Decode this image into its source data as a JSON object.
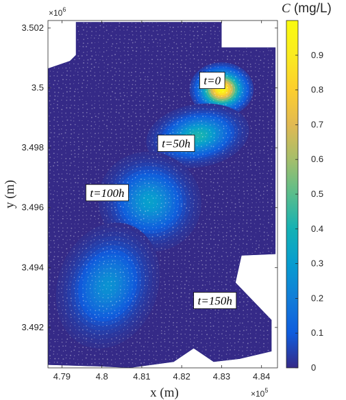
{
  "chart_data": {
    "type": "scatter",
    "title": "",
    "xlabel": "x (m)",
    "ylabel": "y (m)",
    "xlim": [
      478650,
      484400
    ],
    "ylim": [
      3490650,
      3502250
    ],
    "x_ticks": [
      479000,
      480000,
      481000,
      482000,
      483000,
      484000
    ],
    "x_tick_labels": [
      "4.79",
      "4.8",
      "4.81",
      "4.82",
      "4.83",
      "4.84"
    ],
    "x_multiplier": "×10",
    "x_multiplier_exp": "5",
    "y_ticks": [
      3492000,
      3494000,
      3496000,
      3498000,
      3500000,
      3502000
    ],
    "y_tick_labels": [
      "3.492",
      "3.494",
      "3.496",
      "3.498",
      "3.5",
      "3.502"
    ],
    "y_multiplier": "×10",
    "y_multiplier_exp": "6",
    "colorbar": {
      "title_var": "C",
      "title_unit": "(mg/L)",
      "colormap": "parula",
      "range": [
        0,
        1
      ],
      "ticks": [
        0,
        0.1,
        0.2,
        0.3,
        0.4,
        0.5,
        0.6,
        0.7,
        0.8,
        0.9
      ],
      "tick_labels": [
        "0",
        "0.1",
        "0.2",
        "0.3",
        "0.4",
        "0.5",
        "0.6",
        "0.7",
        "0.8",
        "0.9"
      ]
    },
    "domain_boundary": [
      [
        479350,
        3502200
      ],
      [
        483000,
        3502200
      ],
      [
        483000,
        3501350
      ],
      [
        484350,
        3501350
      ],
      [
        484350,
        3494450
      ],
      [
        483500,
        3494400
      ],
      [
        483350,
        3493500
      ],
      [
        484250,
        3492250
      ],
      [
        484250,
        3491200
      ],
      [
        483450,
        3490950
      ],
      [
        482800,
        3490850
      ],
      [
        482300,
        3491300
      ],
      [
        481800,
        3490850
      ],
      [
        480700,
        3490650
      ],
      [
        479900,
        3490700
      ],
      [
        478650,
        3490750
      ],
      [
        478650,
        3500650
      ],
      [
        479200,
        3500900
      ],
      [
        479350,
        3501100
      ]
    ],
    "plumes": [
      {
        "label": "t=0",
        "cx": 483000,
        "cy": 3499950,
        "rx": 800,
        "ry": 900,
        "angle": 0,
        "peak": 1.0,
        "label_at": [
          482450,
          3500250
        ]
      },
      {
        "label": "t=50h",
        "cx": 482400,
        "cy": 3498400,
        "rx": 1300,
        "ry": 1050,
        "angle": -10,
        "peak": 0.42,
        "label_at": [
          481400,
          3498150
        ]
      },
      {
        "label": "t=100h",
        "cx": 481200,
        "cy": 3496200,
        "rx": 1300,
        "ry": 1650,
        "angle": 25,
        "peak": 0.32,
        "label_at": [
          479600,
          3496500
        ]
      },
      {
        "label": "t=150h",
        "cx": 480150,
        "cy": 3493400,
        "rx": 1250,
        "ry": 2150,
        "angle": 20,
        "peak": 0.27,
        "label_at": [
          482300,
          3492900
        ]
      }
    ],
    "background_concentration": 0.0,
    "marker": "filled circles on a scattered mesh"
  }
}
